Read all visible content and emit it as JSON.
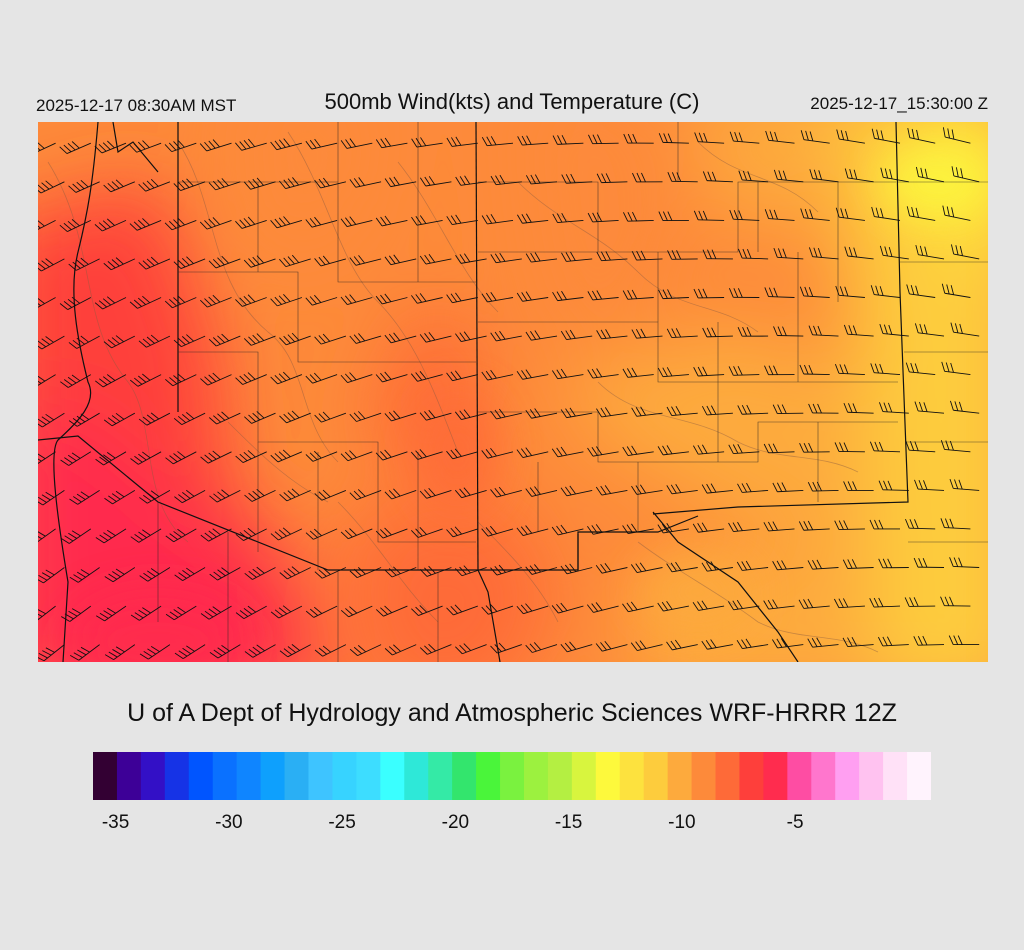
{
  "header": {
    "local_time": "2025-12-17 08:30AM MST",
    "title": "500mb Wind(kts) and Temperature (C)",
    "utc_time": "2025-12-17_15:30:00 Z"
  },
  "map": {
    "field": "500mb temperature",
    "units": "C",
    "temperature_scale_colors": [
      "#330033",
      "#3d0097",
      "#3310c6",
      "#1633e6",
      "#0055ff",
      "#0a71ff",
      "#0f85ff",
      "#0ea0fd",
      "#2aaff4",
      "#3ec4ff",
      "#37d3ff",
      "#3dddff",
      "#3affff",
      "#2ee8d8",
      "#34eaa6",
      "#33e56d",
      "#4af53a",
      "#7af23f",
      "#9cf13f",
      "#b4ef42",
      "#d8f53e",
      "#fdf93c",
      "#fde23e",
      "#fdcc3d",
      "#fdaa3d",
      "#fd8a3a",
      "#fe6a38",
      "#fe3f3b",
      "#ff2c4e",
      "#fe4da3",
      "#ff76cd",
      "#ff9ff1",
      "#ffc2f0",
      "#ffe1f7",
      "#fff3fd"
    ],
    "colorbar_ticks": [
      "-35",
      "-30",
      "-25",
      "-20",
      "-15",
      "-10",
      "-5"
    ],
    "colorbar_tick_values": [
      -35,
      -30,
      -25,
      -20,
      -15,
      -10,
      -5
    ],
    "colorbar_min": -36,
    "colorbar_max": 1
  },
  "footer": {
    "credit": "U of A Dept of Hydrology and Atmospheric Sciences WRF-HRRR 12Z"
  }
}
